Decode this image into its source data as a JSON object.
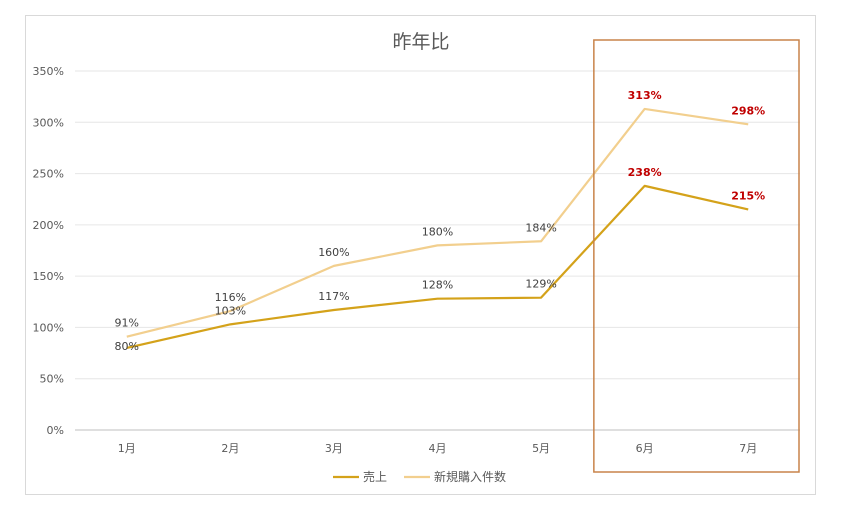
{
  "chart_data": {
    "type": "line",
    "title": "昨年比",
    "categories": [
      "1月",
      "2月",
      "3月",
      "4月",
      "5月",
      "6月",
      "7月"
    ],
    "y_ticks": [
      "0%",
      "50%",
      "100%",
      "150%",
      "200%",
      "250%",
      "300%",
      "350%"
    ],
    "ylim": [
      0,
      350
    ],
    "grid": true,
    "legend_position": "bottom",
    "series": [
      {
        "name": "売上",
        "values": [
          80,
          103,
          117,
          128,
          129,
          238,
          215
        ],
        "labels": [
          "80%",
          "103%",
          "117%",
          "128%",
          "129%",
          "238%",
          "215%"
        ],
        "color": "#d4a21a"
      },
      {
        "name": "新規購入件数",
        "values": [
          91,
          116,
          160,
          180,
          184,
          313,
          298
        ],
        "labels": [
          "91%",
          "116%",
          "160%",
          "180%",
          "184%",
          "313%",
          "298%"
        ],
        "color": "#f2cf8e"
      }
    ],
    "highlight": {
      "categories": [
        "6月",
        "7月"
      ],
      "label_color": "#c00000",
      "box_color": "#c8834a"
    }
  }
}
